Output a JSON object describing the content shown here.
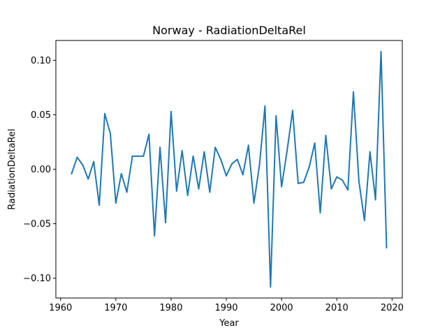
{
  "chart_data": {
    "type": "line",
    "title": "Norway - RadiationDeltaRel",
    "xlabel": "Year",
    "ylabel": "RadiationDeltaRel",
    "xlim": [
      1959.15,
      2021.85
    ],
    "ylim": [
      -0.1182,
      0.1182
    ],
    "xticks": [
      1960,
      1970,
      1980,
      1990,
      2000,
      2010,
      2020
    ],
    "xtick_labels": [
      "1960",
      "1970",
      "1980",
      "1990",
      "2000",
      "2010",
      "2020"
    ],
    "yticks": [
      -0.1,
      -0.05,
      0.0,
      0.05,
      0.1
    ],
    "ytick_labels": [
      "−0.10",
      "−0.05",
      "0.00",
      "0.05",
      "0.10"
    ],
    "grid": false,
    "line_color": "#1f77b4",
    "series": [
      {
        "x": [
          1962,
          1963,
          1964,
          1965,
          1966,
          1967,
          1968,
          1969,
          1970,
          1971,
          1972,
          1973,
          1974,
          1975,
          1976,
          1977,
          1978,
          1979,
          1980,
          1981,
          1982,
          1983,
          1984,
          1985,
          1986,
          1987,
          1988,
          1989,
          1990,
          1991,
          1992,
          1993,
          1994,
          1995,
          1996,
          1997,
          1998,
          1999,
          2000,
          2001,
          2002,
          2003,
          2004,
          2005,
          2006,
          2007,
          2008,
          2009,
          2010,
          2011,
          2012,
          2013,
          2014,
          2015,
          2016,
          2017,
          2018,
          2019
        ],
        "values": [
          -0.004,
          0.011,
          0.004,
          -0.009,
          0.007,
          -0.033,
          0.051,
          0.033,
          -0.031,
          -0.004,
          -0.021,
          0.012,
          0.012,
          0.012,
          0.032,
          -0.061,
          0.02,
          -0.049,
          0.053,
          -0.02,
          0.017,
          -0.024,
          0.012,
          -0.018,
          0.016,
          -0.021,
          0.02,
          0.009,
          -0.006,
          0.005,
          0.009,
          -0.005,
          0.022,
          -0.031,
          0.004,
          0.058,
          -0.108,
          0.049,
          -0.016,
          0.017,
          0.054,
          -0.013,
          -0.012,
          0.002,
          0.024,
          -0.04,
          0.031,
          -0.018,
          -0.007,
          -0.01,
          -0.019,
          0.071,
          -0.011,
          -0.047,
          0.016,
          -0.028,
          0.108,
          -0.072
        ]
      }
    ]
  }
}
